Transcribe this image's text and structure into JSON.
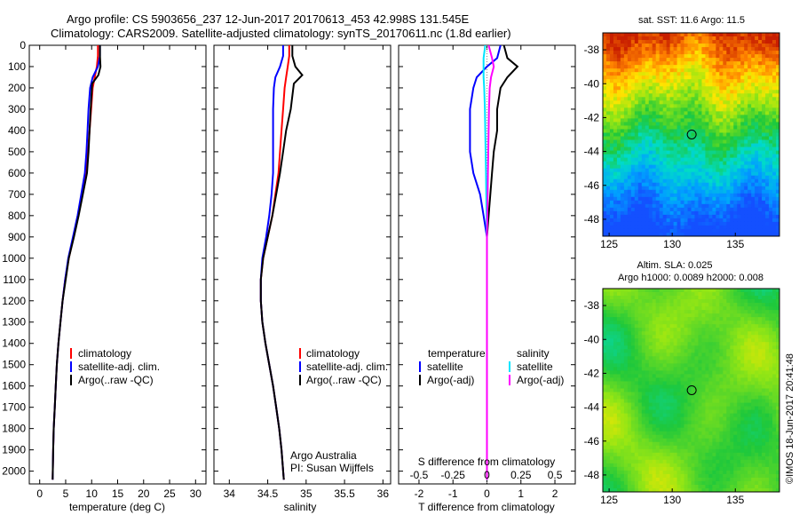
{
  "header": {
    "line1": "Argo profile: CS 5903656_237 12-Jun-2017 20170613_453 42.998S 131.545E",
    "line2": "Climatology: CARS2009. Satellite-adjusted climatology: synTS_20170611.nc (1.8d earlier)"
  },
  "colors": {
    "climatology": "#ff0000",
    "satellite": "#0000ff",
    "argo": "#000000",
    "sal_satellite": "#00e5ff",
    "sal_argo": "#ff00ff"
  },
  "depth_ticks": [
    0,
    100,
    200,
    300,
    400,
    500,
    600,
    700,
    800,
    900,
    1000,
    1100,
    1200,
    1300,
    1400,
    1500,
    1600,
    1700,
    1800,
    1900,
    2000
  ],
  "temperature_panel": {
    "xlabel": "temperature (deg C)",
    "xlim": [
      -2,
      32
    ],
    "ylim": [
      0,
      2060
    ],
    "xticks": [
      "0",
      "5",
      "10",
      "15",
      "20",
      "25",
      "30"
    ],
    "legend": [
      "climatology",
      "satellite-adj. clim.",
      "Argo(..raw -QC)"
    ]
  },
  "salinity_panel": {
    "xlabel": "salinity",
    "xlim": [
      33.8,
      36.1
    ],
    "ylim": [
      0,
      2060
    ],
    "xticks": [
      "34",
      "34.5",
      "35",
      "35.5",
      "36"
    ],
    "legend": [
      "climatology",
      "satellite-adj. clim.",
      "Argo(..raw -QC)"
    ],
    "credit1": "Argo Australia",
    "credit2": "PI: Susan Wijffels"
  },
  "difference_panel": {
    "xlabel": "T difference from climatology",
    "top_label": "S difference from climatology",
    "xlim": [
      -2.6,
      2.6
    ],
    "ylim": [
      0,
      2060
    ],
    "xticks": [
      "-2",
      "-1",
      "0",
      "1",
      "2"
    ],
    "top_ticks": [
      "-0.5",
      "-0.25",
      "0",
      "0.25",
      "0.5"
    ],
    "legend_temperature_title": "temperature",
    "legend_salinity_title": "salinity",
    "legend_temperature": [
      "satellite",
      "Argo(-adj)"
    ],
    "legend_salinity": [
      "satellite",
      "Argo(-adj)"
    ]
  },
  "sst_map": {
    "title": "sat. SST: 11.6 Argo: 11.5",
    "xticks": [
      "125",
      "130",
      "135"
    ],
    "yticks": [
      "-38",
      "-40",
      "-42",
      "-44",
      "-46",
      "-48"
    ],
    "lon_range": [
      124.5,
      138.5
    ],
    "lat_range": [
      -49,
      -37
    ],
    "float_lon": 131.545,
    "float_lat": -42.998
  },
  "sla_map": {
    "title1": "Altim. SLA: 0.025",
    "title2": "Argo h1000: 0.0089 h2000: 0.008",
    "xticks": [
      "125",
      "130",
      "135"
    ],
    "yticks": [
      "-38",
      "-40",
      "-42",
      "-44",
      "-46",
      "-48"
    ],
    "lon_range": [
      124.5,
      138.5
    ],
    "lat_range": [
      -49,
      -37
    ],
    "float_lon": 131.545,
    "float_lat": -42.998
  },
  "footer": {
    "stamp": "©IMOS 18-Jun-2017 20:41:48"
  },
  "chart_data": [
    {
      "type": "line",
      "x_quantity": "temperature",
      "y_quantity": "depth",
      "series": [
        {
          "name": "climatology",
          "x": [
            11.2,
            11.2,
            11.0,
            10.6,
            10.2,
            9.9,
            9.6,
            9.3,
            8.9,
            8.2,
            7.4,
            6.5,
            5.6,
            4.9,
            4.4,
            4.0,
            3.6,
            3.3,
            3.1,
            2.9,
            2.7,
            2.6,
            2.5
          ],
          "y": [
            0,
            50,
            100,
            150,
            200,
            300,
            400,
            500,
            600,
            700,
            800,
            900,
            1000,
            1100,
            1200,
            1300,
            1400,
            1500,
            1600,
            1700,
            1800,
            1900,
            2040
          ]
        },
        {
          "name": "satellite-adj. clim.",
          "x": [
            11.6,
            11.6,
            11.2,
            10.2,
            9.7,
            9.4,
            9.2,
            9.0,
            8.7,
            8.0,
            7.3,
            6.4,
            5.5,
            4.9,
            4.4,
            4.0,
            3.6,
            3.3,
            3.1,
            2.9,
            2.7,
            2.6,
            2.5
          ],
          "y": [
            0,
            50,
            100,
            150,
            200,
            300,
            400,
            500,
            600,
            700,
            800,
            900,
            1000,
            1100,
            1200,
            1300,
            1400,
            1500,
            1600,
            1700,
            1800,
            1900,
            2040
          ]
        },
        {
          "name": "Argo(..raw -QC)",
          "x": [
            11.6,
            11.6,
            11.7,
            11.3,
            10.1,
            9.8,
            9.6,
            9.4,
            9.1,
            8.3,
            7.5,
            6.6,
            5.6,
            5.0,
            4.4,
            4.0,
            3.6,
            3.3,
            3.1,
            2.9,
            2.7,
            2.6,
            2.5
          ],
          "y": [
            0,
            50,
            100,
            140,
            180,
            300,
            400,
            500,
            600,
            700,
            800,
            900,
            1000,
            1100,
            1200,
            1300,
            1400,
            1500,
            1600,
            1700,
            1800,
            1900,
            2040
          ]
        }
      ]
    },
    {
      "type": "line",
      "x_quantity": "salinity",
      "y_quantity": "depth",
      "series": [
        {
          "name": "climatology",
          "x": [
            34.78,
            34.78,
            34.76,
            34.74,
            34.72,
            34.7,
            34.68,
            34.66,
            34.64,
            34.6,
            34.56,
            34.5,
            34.44,
            34.41,
            34.41,
            34.43,
            34.47,
            34.52,
            34.57,
            34.61,
            34.65,
            34.68,
            34.71
          ],
          "y": [
            0,
            50,
            100,
            150,
            200,
            300,
            400,
            500,
            600,
            700,
            800,
            900,
            1000,
            1100,
            1200,
            1300,
            1400,
            1500,
            1600,
            1700,
            1800,
            1900,
            2040
          ]
        },
        {
          "name": "satellite-adj. clim.",
          "x": [
            34.7,
            34.7,
            34.66,
            34.6,
            34.58,
            34.57,
            34.57,
            34.57,
            34.57,
            34.55,
            34.52,
            34.48,
            34.43,
            34.41,
            34.41,
            34.43,
            34.47,
            34.52,
            34.57,
            34.61,
            34.65,
            34.68,
            34.71
          ],
          "y": [
            0,
            50,
            100,
            150,
            200,
            300,
            400,
            500,
            600,
            700,
            800,
            900,
            1000,
            1100,
            1200,
            1300,
            1400,
            1500,
            1600,
            1700,
            1800,
            1900,
            2040
          ]
        },
        {
          "name": "Argo(..raw -QC)",
          "x": [
            34.82,
            34.82,
            34.86,
            34.95,
            34.84,
            34.8,
            34.74,
            34.7,
            34.66,
            34.61,
            34.56,
            34.5,
            34.44,
            34.41,
            34.41,
            34.43,
            34.47,
            34.52,
            34.57,
            34.61,
            34.65,
            34.68,
            34.71
          ],
          "y": [
            0,
            50,
            100,
            140,
            180,
            300,
            400,
            500,
            600,
            700,
            800,
            900,
            1000,
            1100,
            1200,
            1300,
            1400,
            1500,
            1600,
            1700,
            1800,
            1900,
            2040
          ]
        }
      ]
    },
    {
      "type": "line",
      "x_quantity": "T difference from climatology",
      "y_quantity": "depth",
      "series": [
        {
          "name": "temperature satellite",
          "x": [
            0.4,
            0.3,
            0.0,
            -0.3,
            -0.4,
            -0.5,
            -0.5,
            -0.5,
            -0.4,
            -0.2,
            -0.1,
            0.0,
            0.0,
            0.0,
            0.0,
            0.0,
            0.0,
            0.0,
            0.0,
            0.0
          ],
          "y": [
            0,
            60,
            100,
            150,
            200,
            300,
            400,
            500,
            600,
            700,
            800,
            900,
            1000,
            1100,
            1200,
            1400,
            1600,
            1800,
            1900,
            2040
          ]
        },
        {
          "name": "temperature Argo(-adj)",
          "x": [
            0.5,
            0.6,
            0.9,
            0.6,
            0.4,
            0.3,
            0.3,
            0.2,
            0.15,
            0.1,
            0.05,
            0.0,
            0.0,
            0.0,
            0.0,
            0.0,
            0.0,
            0.0,
            0.0,
            0.0
          ],
          "y": [
            0,
            60,
            100,
            150,
            200,
            300,
            400,
            500,
            600,
            700,
            800,
            900,
            1000,
            1100,
            1200,
            1400,
            1600,
            1800,
            1900,
            2040
          ]
        },
        {
          "name": "salinity satellite",
          "x": [
            -0.05,
            -0.1,
            -0.1,
            -0.1,
            -0.08,
            -0.06,
            -0.05,
            -0.04,
            -0.03,
            -0.02,
            -0.01,
            0.0,
            0.0,
            0.0,
            0.0,
            0.0,
            0.0,
            0.0,
            0.0,
            0.0
          ],
          "y": [
            0,
            60,
            100,
            150,
            200,
            300,
            400,
            500,
            600,
            700,
            800,
            900,
            1000,
            1100,
            1200,
            1400,
            1600,
            1800,
            1900,
            2040
          ]
        },
        {
          "name": "salinity Argo(-adj)",
          "x": [
            0.05,
            0.15,
            0.2,
            0.12,
            0.08,
            0.06,
            0.05,
            0.04,
            0.03,
            0.02,
            0.01,
            0.0,
            0.0,
            0.0,
            0.0,
            0.0,
            0.0,
            0.0,
            0.0,
            0.0
          ],
          "y": [
            0,
            60,
            100,
            150,
            200,
            300,
            400,
            500,
            600,
            700,
            800,
            900,
            1000,
            1100,
            1200,
            1400,
            1600,
            1800,
            1900,
            2040
          ]
        }
      ]
    }
  ]
}
